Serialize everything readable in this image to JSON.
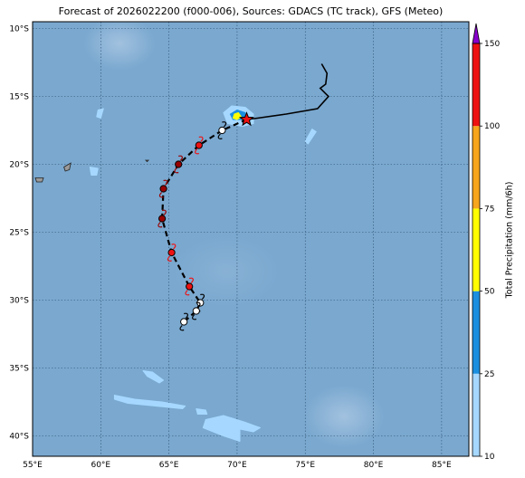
{
  "title": "Forecast of 2026022200 (f000-006), Sources: GDACS (TC track), GFS (Meteo)",
  "map": {
    "lon_range": [
      55,
      87
    ],
    "lat_range": [
      -41.5,
      -9.5
    ],
    "lon_ticks": [
      55,
      60,
      65,
      70,
      75,
      80,
      85
    ],
    "lon_tick_labels": [
      "55°E",
      "60°E",
      "65°E",
      "70°E",
      "75°E",
      "80°E",
      "85°E"
    ],
    "lat_ticks": [
      -10,
      -15,
      -20,
      -25,
      -30,
      -35,
      -40
    ],
    "lat_tick_labels": [
      "10°S",
      "15°S",
      "20°S",
      "25°S",
      "30°S",
      "35°S",
      "40°S"
    ],
    "ocean_color": "#7aa8cf",
    "grid": true,
    "observed_track": [
      [
        76.2,
        -12.6
      ],
      [
        76.6,
        -13.3
      ],
      [
        76.5,
        -14.1
      ],
      [
        76.1,
        -14.4
      ],
      [
        76.7,
        -15.0
      ],
      [
        75.9,
        -15.9
      ],
      [
        73.6,
        -16.3
      ],
      [
        71.5,
        -16.6
      ],
      [
        70.7,
        -16.7
      ]
    ],
    "forecast_track": [
      [
        70.7,
        -16.7
      ],
      [
        68.9,
        -17.5
      ],
      [
        67.2,
        -18.6
      ],
      [
        65.7,
        -20.0
      ],
      [
        64.6,
        -21.8
      ],
      [
        64.5,
        -24.0
      ],
      [
        65.2,
        -26.5
      ],
      [
        66.5,
        -29.0
      ],
      [
        67.3,
        -30.2
      ],
      [
        67.0,
        -30.8
      ],
      [
        66.1,
        -31.6
      ]
    ],
    "current_position": [
      70.7,
      -16.7
    ],
    "forecast_positions": [
      {
        "lon": 68.9,
        "lat": -17.5,
        "category": "low"
      },
      {
        "lon": 67.2,
        "lat": -18.6,
        "category": "storm"
      },
      {
        "lon": 65.7,
        "lat": -20.0,
        "category": "cyclone"
      },
      {
        "lon": 64.6,
        "lat": -21.8,
        "category": "cyclone"
      },
      {
        "lon": 64.5,
        "lat": -24.0,
        "category": "cyclone"
      },
      {
        "lon": 65.2,
        "lat": -26.5,
        "category": "storm"
      },
      {
        "lon": 66.5,
        "lat": -29.0,
        "category": "storm"
      },
      {
        "lon": 67.3,
        "lat": -30.2,
        "category": "low"
      },
      {
        "lon": 67.0,
        "lat": -30.8,
        "category": "low"
      },
      {
        "lon": 66.1,
        "lat": -31.6,
        "category": "low"
      }
    ],
    "category_colors": {
      "low": "#ffffff",
      "storm": "#ee1111",
      "cyclone": "#990000"
    },
    "precip_patches": [
      {
        "color": "#a6d8ff",
        "points": [
          [
            69.0,
            -16.2
          ],
          [
            69.6,
            -15.7
          ],
          [
            70.6,
            -15.8
          ],
          [
            71.2,
            -16.3
          ],
          [
            71.2,
            -17.0
          ],
          [
            70.4,
            -17.2
          ],
          [
            69.3,
            -17.0
          ]
        ]
      },
      {
        "color": "#1a8fe0",
        "points": [
          [
            69.5,
            -16.3
          ],
          [
            70.0,
            -16.0
          ],
          [
            70.6,
            -16.2
          ],
          [
            70.5,
            -16.7
          ],
          [
            69.7,
            -16.7
          ]
        ]
      },
      {
        "color": "#ffff00",
        "points": [
          [
            69.8,
            -16.3
          ],
          [
            70.1,
            -16.2
          ],
          [
            70.3,
            -16.5
          ],
          [
            70.0,
            -16.7
          ],
          [
            69.7,
            -16.6
          ]
        ]
      },
      {
        "color": "#a6d8ff",
        "points": [
          [
            59.8,
            -16.0
          ],
          [
            60.2,
            -15.9
          ],
          [
            60.0,
            -16.6
          ],
          [
            59.7,
            -16.5
          ]
        ]
      },
      {
        "color": "#a6d8ff",
        "points": [
          [
            75.0,
            -18.3
          ],
          [
            75.5,
            -17.4
          ],
          [
            75.8,
            -17.6
          ],
          [
            75.2,
            -18.5
          ]
        ]
      },
      {
        "color": "#a6d8ff",
        "points": [
          [
            59.2,
            -20.2
          ],
          [
            59.8,
            -20.3
          ],
          [
            59.7,
            -20.8
          ],
          [
            59.3,
            -20.8
          ]
        ]
      },
      {
        "color": "#a6d8ff",
        "points": [
          [
            63.1,
            -35.2
          ],
          [
            63.8,
            -35.3
          ],
          [
            64.6,
            -35.9
          ],
          [
            64.3,
            -36.1
          ],
          [
            63.4,
            -35.6
          ]
        ]
      },
      {
        "color": "#a6d8ff",
        "points": [
          [
            61.0,
            -37.0
          ],
          [
            62.5,
            -37.3
          ],
          [
            64.5,
            -37.5
          ],
          [
            66.2,
            -37.8
          ],
          [
            66.0,
            -38.0
          ],
          [
            64.0,
            -37.8
          ],
          [
            62.0,
            -37.6
          ],
          [
            61.0,
            -37.3
          ]
        ]
      },
      {
        "color": "#a6d8ff",
        "points": [
          [
            67.0,
            -38.0
          ],
          [
            67.7,
            -38.1
          ],
          [
            67.8,
            -38.4
          ],
          [
            67.1,
            -38.4
          ]
        ]
      },
      {
        "color": "#a6d8ff",
        "points": [
          [
            67.7,
            -38.8
          ],
          [
            69.0,
            -38.5
          ],
          [
            70.6,
            -39.0
          ],
          [
            71.7,
            -39.4
          ],
          [
            71.2,
            -39.7
          ],
          [
            70.2,
            -39.5
          ],
          [
            70.2,
            -40.4
          ],
          [
            69.0,
            -40.0
          ],
          [
            67.5,
            -39.4
          ]
        ]
      }
    ],
    "islands": [
      {
        "name": "",
        "points": [
          [
            55.2,
            -21.0
          ],
          [
            55.8,
            -21.0
          ],
          [
            55.7,
            -21.3
          ],
          [
            55.3,
            -21.3
          ]
        ]
      },
      {
        "name": "",
        "points": [
          [
            57.3,
            -20.2
          ],
          [
            57.8,
            -19.9
          ],
          [
            57.7,
            -20.4
          ],
          [
            57.4,
            -20.5
          ]
        ]
      },
      {
        "name": "",
        "points": [
          [
            63.3,
            -19.7
          ],
          [
            63.5,
            -19.7
          ],
          [
            63.4,
            -19.8
          ]
        ]
      }
    ]
  },
  "colorbar": {
    "label": "Total Precipitation (mm/6h)",
    "bounds": [
      10,
      25,
      50,
      75,
      100,
      150
    ],
    "tick_labels": [
      "10",
      "25",
      "50",
      "75",
      "100",
      "150"
    ],
    "colors": [
      "#a6d8ff",
      "#1a8fe0",
      "#ffff00",
      "#f6a51c",
      "#ee1111"
    ],
    "extend_color": "#8800cc"
  }
}
